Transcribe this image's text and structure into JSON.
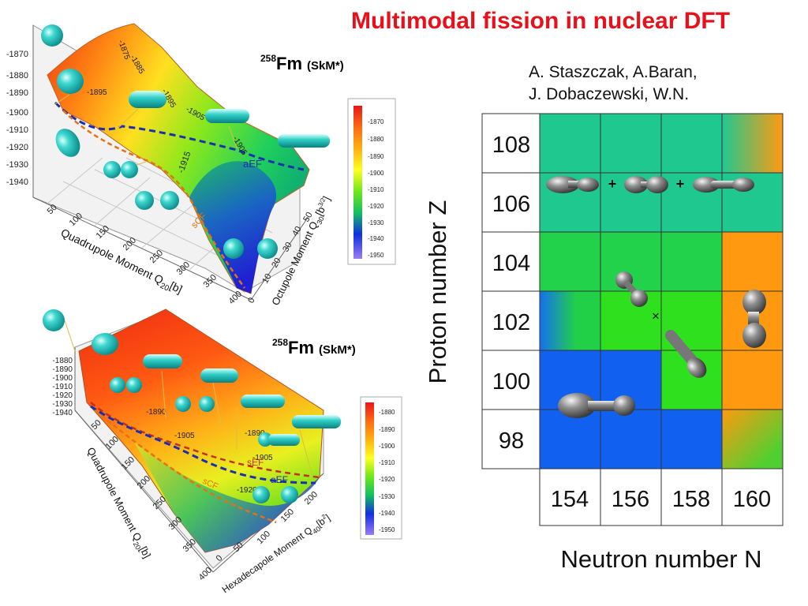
{
  "title": "Multimodal fission in nuclear DFT",
  "authors": [
    "A. Staszczak, A.Baran,",
    "J. Dobaczewski, W.N."
  ],
  "colors": {
    "title": "#e8101a",
    "sea_green": "#1fce96",
    "green": "#2ee01e",
    "blue": "#1260f0",
    "orange": "#ff9a10",
    "nucleus": "#8a8a8a",
    "cyan_blob": "#1fbfbf"
  },
  "panel_top": {
    "nucleus_mass": "258",
    "nucleus_symbol": "Fm",
    "functional": "(SkM*)",
    "z_ticks": [
      "-1870",
      "-1880",
      "-1890",
      "-1900",
      "-1910",
      "-1920",
      "-1930",
      "-1940"
    ],
    "x_axis_label": "Quadrupole Moment Q",
    "x_axis_sub": "20",
    "x_axis_unit": "[b]",
    "x_ticks": [
      "50",
      "100",
      "150",
      "200",
      "250",
      "300",
      "350",
      "400"
    ],
    "y_axis_label": "Octupole Moment Q",
    "y_axis_sub": "30",
    "y_axis_unit": "[b",
    "y_axis_unit_sup": "3/2",
    "y_ticks": [
      "0",
      "10",
      "20",
      "30",
      "40",
      "50"
    ],
    "contours": [
      "-1875",
      "-1885",
      "-1895",
      "-1895",
      "-1905",
      "-1905",
      "-1915"
    ],
    "path_labels": {
      "aEF": "aEF",
      "sCF": "sCF"
    },
    "colorbar_ticks": [
      "-1870",
      "-1880",
      "-1890",
      "-1900",
      "-1910",
      "-1920",
      "-1930",
      "-1940",
      "-1950"
    ]
  },
  "panel_bottom": {
    "nucleus_mass": "258",
    "nucleus_symbol": "Fm",
    "functional": "(SkM*)",
    "z_ticks": [
      "-1880",
      "-1890",
      "-1900",
      "-1910",
      "-1920",
      "-1930",
      "-1940"
    ],
    "x_axis_label": "Quadrupole Moment Q",
    "x_axis_sub": "20",
    "x_axis_unit": "[b]",
    "x_ticks": [
      "50",
      "100",
      "150",
      "200",
      "250",
      "300",
      "350",
      "400"
    ],
    "y_axis_label": "Hexadecapole Moment Q",
    "y_axis_sub": "40",
    "y_axis_unit": "[b",
    "y_axis_unit_sup": "2",
    "y_ticks": [
      "0",
      "50",
      "100",
      "150",
      "200"
    ],
    "contours": [
      "-1890",
      "-1905",
      "-1890",
      "-1905",
      "-1920"
    ],
    "path_labels": {
      "sEF": "sEF",
      "aEF": "aEF",
      "sCF": "sCF"
    },
    "colorbar_ticks": [
      "-1880",
      "-1890",
      "-1900",
      "-1910",
      "-1920",
      "-1930",
      "-1940",
      "-1950"
    ]
  },
  "grid": {
    "y_axis_title": "Proton number Z",
    "x_axis_title": "Neutron number N",
    "proton_numbers": [
      "108",
      "106",
      "104",
      "102",
      "100",
      "98"
    ],
    "neutron_numbers": [
      "154",
      "156",
      "158",
      "160"
    ],
    "plus_signs": [
      "+",
      "+"
    ],
    "cross_mark": "×"
  }
}
